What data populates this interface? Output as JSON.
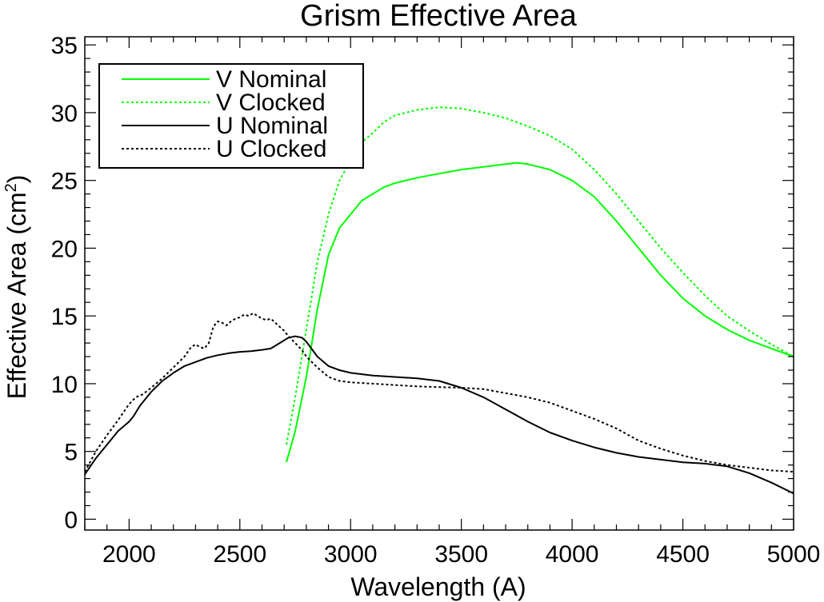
{
  "chart_data": {
    "type": "line",
    "title": "Grism Effective Area",
    "xlabel": "Wavelength (A)",
    "ylabel": "Effective Area (cm",
    "ylabel_superscript": "2",
    "ylabel_suffix": ")",
    "xlim": [
      1800,
      5000
    ],
    "ylim": [
      -0.8,
      35.6
    ],
    "xticks": [
      2000,
      2500,
      3000,
      3500,
      4000,
      4500,
      5000
    ],
    "yticks": [
      0,
      5,
      10,
      15,
      20,
      25,
      30,
      35
    ],
    "legend_position": "top-left",
    "grid": false,
    "series": [
      {
        "name": "V Nominal",
        "color": "#00ff00",
        "dash": "solid",
        "x": [
          2710,
          2750,
          2800,
          2850,
          2900,
          2950,
          3000,
          3050,
          3100,
          3150,
          3200,
          3300,
          3400,
          3500,
          3600,
          3700,
          3750,
          3800,
          3900,
          4000,
          4100,
          4200,
          4300,
          4400,
          4500,
          4600,
          4700,
          4800,
          4900,
          5000
        ],
        "y": [
          4.2,
          6.5,
          10.5,
          15.5,
          19.5,
          21.5,
          22.5,
          23.5,
          24.0,
          24.5,
          24.8,
          25.2,
          25.5,
          25.8,
          26.0,
          26.2,
          26.3,
          26.2,
          25.8,
          25.0,
          23.8,
          22.0,
          20.0,
          18.0,
          16.3,
          15.0,
          14.0,
          13.2,
          12.6,
          12.0
        ]
      },
      {
        "name": "V Clocked",
        "color": "#00ff00",
        "dash": "dotted",
        "x": [
          2710,
          2750,
          2800,
          2850,
          2900,
          2950,
          3000,
          3050,
          3100,
          3150,
          3200,
          3300,
          3400,
          3500,
          3600,
          3700,
          3800,
          3900,
          4000,
          4100,
          4200,
          4300,
          4400,
          4500,
          4600,
          4700,
          4800,
          4900,
          5000
        ],
        "y": [
          5.5,
          9.0,
          14.0,
          19.0,
          22.5,
          25.0,
          26.5,
          27.8,
          28.5,
          29.3,
          29.8,
          30.2,
          30.4,
          30.3,
          30.0,
          29.6,
          29.0,
          28.3,
          27.3,
          25.8,
          24.0,
          22.0,
          20.0,
          18.2,
          16.5,
          15.0,
          13.9,
          12.9,
          12.0
        ]
      },
      {
        "name": "U Nominal",
        "color": "#000000",
        "dash": "solid",
        "x": [
          1800,
          1850,
          1900,
          1950,
          2000,
          2020,
          2050,
          2100,
          2150,
          2200,
          2250,
          2300,
          2350,
          2400,
          2450,
          2500,
          2550,
          2600,
          2640,
          2680,
          2700,
          2720,
          2750,
          2780,
          2800,
          2850,
          2900,
          2950,
          3000,
          3100,
          3200,
          3300,
          3400,
          3500,
          3600,
          3700,
          3800,
          3900,
          4000,
          4100,
          4200,
          4300,
          4400,
          4500,
          4600,
          4700,
          4800,
          4900,
          5000
        ],
        "y": [
          3.3,
          4.5,
          5.5,
          6.5,
          7.2,
          7.6,
          8.4,
          9.4,
          10.2,
          10.8,
          11.3,
          11.6,
          11.9,
          12.1,
          12.25,
          12.35,
          12.4,
          12.5,
          12.6,
          13.0,
          13.2,
          13.4,
          13.5,
          13.4,
          13.1,
          12.0,
          11.3,
          11.0,
          10.8,
          10.6,
          10.5,
          10.4,
          10.2,
          9.7,
          9.0,
          8.1,
          7.2,
          6.4,
          5.8,
          5.3,
          4.9,
          4.6,
          4.4,
          4.2,
          4.1,
          3.9,
          3.4,
          2.7,
          1.9
        ]
      },
      {
        "name": "U Clocked",
        "color": "#000000",
        "dash": "dotted",
        "x": [
          1800,
          1850,
          1900,
          1950,
          2000,
          2030,
          2060,
          2100,
          2150,
          2200,
          2250,
          2280,
          2300,
          2320,
          2340,
          2360,
          2380,
          2400,
          2420,
          2440,
          2460,
          2480,
          2500,
          2520,
          2540,
          2560,
          2580,
          2600,
          2620,
          2640,
          2660,
          2680,
          2700,
          2720,
          2750,
          2780,
          2800,
          2850,
          2900,
          2950,
          3000,
          3100,
          3200,
          3300,
          3400,
          3500,
          3600,
          3700,
          3800,
          3900,
          4000,
          4100,
          4200,
          4300,
          4400,
          4500,
          4600,
          4700,
          4800,
          4900,
          5000
        ],
        "y": [
          3.5,
          5.0,
          6.2,
          7.3,
          8.5,
          9.0,
          9.2,
          9.7,
          10.4,
          11.2,
          12.0,
          12.7,
          12.9,
          12.7,
          12.6,
          13.0,
          14.2,
          14.6,
          14.5,
          14.3,
          14.6,
          14.8,
          14.9,
          15.1,
          15.0,
          15.2,
          15.0,
          14.8,
          14.7,
          14.8,
          14.5,
          14.2,
          13.9,
          13.5,
          13.0,
          12.5,
          12.0,
          11.2,
          10.5,
          10.2,
          10.1,
          10.0,
          9.9,
          9.8,
          9.75,
          9.7,
          9.6,
          9.3,
          9.0,
          8.6,
          8.0,
          7.4,
          6.7,
          5.8,
          5.2,
          4.7,
          4.3,
          4.0,
          3.8,
          3.6,
          3.5
        ]
      }
    ]
  }
}
